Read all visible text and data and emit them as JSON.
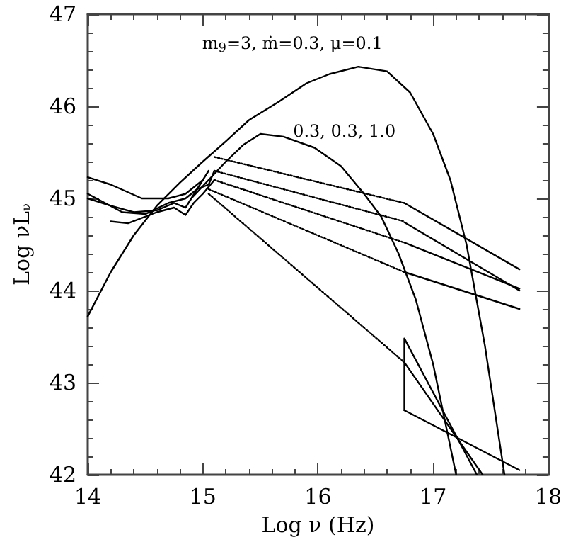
{
  "chart_data": {
    "type": "line",
    "xlabel": "Log ν (Hz)",
    "ylabel": "Log νL$_{ν}$",
    "xlim": [
      14,
      18
    ],
    "ylim": [
      42,
      47
    ],
    "xticks": [
      14,
      15,
      16,
      17,
      18
    ],
    "yticks": [
      42,
      43,
      44,
      45,
      46,
      47
    ],
    "grid": false,
    "marker": "none",
    "annotations": [
      "m$_{9}$=3, ṁ=0.3, μ=0.1",
      "0.3, 0.3, 1.0"
    ],
    "series": [
      {
        "color": "#000000",
        "x": [
          14,
          14.2,
          14.4,
          14.6,
          14.8,
          15,
          15.2,
          15.4,
          15.66,
          15.9,
          16.1,
          16.35,
          16.6,
          16.8,
          17,
          17.15,
          17.29,
          17.45,
          17.62
        ],
        "values": [
          43.72,
          44.2,
          44.6,
          44.92,
          45.17,
          45.4,
          45.62,
          45.85,
          46.05,
          46.25,
          46.35,
          46.43,
          46.38,
          46.15,
          45.7,
          45.2,
          44.5,
          43.4,
          42
        ]
      },
      {
        "color": "#000000",
        "x": [
          14.9,
          15.05,
          15.2,
          15.35,
          15.5,
          15.7,
          15.97,
          16.2,
          16.4,
          16.55,
          16.7,
          16.85,
          17,
          17.1,
          17.2
        ],
        "values": [
          45.0,
          45.2,
          45.4,
          45.58,
          45.7,
          45.67,
          45.55,
          45.35,
          45.05,
          44.8,
          44.4,
          43.9,
          43.2,
          42.6,
          42
        ]
      },
      {
        "color": "#000000",
        "x": [
          14,
          14.2,
          14.47,
          14.7,
          14.85,
          15
        ],
        "values": [
          45.23,
          45.15,
          45.0,
          45.0,
          45.05,
          45.2
        ]
      },
      {
        "color": "#000000",
        "x": [
          14,
          14.15,
          14.3,
          14.5,
          14.7,
          14.85,
          14.95,
          15.05
        ],
        "values": [
          45.05,
          44.95,
          44.85,
          44.83,
          44.95,
          45.0,
          45.1,
          45.3
        ]
      },
      {
        "color": "#000000",
        "x": [
          14,
          14.2,
          14.4,
          14.6,
          14.75,
          14.85,
          14.95,
          15.05,
          15.1
        ],
        "values": [
          45.0,
          44.92,
          44.85,
          44.87,
          44.95,
          44.9,
          45.1,
          45.15,
          45.3
        ]
      },
      {
        "color": "#000000",
        "x": [
          14.2,
          14.35,
          14.6,
          14.75,
          14.85,
          14.92,
          15,
          15.1
        ],
        "values": [
          44.75,
          44.73,
          44.85,
          44.9,
          44.82,
          44.95,
          45.05,
          45.2
        ]
      },
      {
        "color": "#000000",
        "line_style": "dotted",
        "x": [
          15.1,
          16.75
        ],
        "values": [
          45.45,
          44.95
        ]
      },
      {
        "color": "#000000",
        "line_style": "dotted",
        "x": [
          15.1,
          16.75
        ],
        "values": [
          45.3,
          44.75
        ]
      },
      {
        "color": "#000000",
        "line_style": "dotted",
        "x": [
          15.1,
          16.75
        ],
        "values": [
          45.2,
          44.52
        ]
      },
      {
        "color": "#000000",
        "line_style": "dotted",
        "x": [
          15.05,
          16.75
        ],
        "values": [
          45.1,
          44.2
        ]
      },
      {
        "color": "#000000",
        "line_style": "dotted",
        "x": [
          15.05,
          16.75
        ],
        "values": [
          45.05,
          43.22
        ]
      },
      {
        "color": "#000000",
        "x": [
          16.75,
          17.75
        ],
        "values": [
          44.95,
          44.23
        ]
      },
      {
        "color": "#000000",
        "x": [
          16.75,
          17.75
        ],
        "values": [
          44.74,
          44.0
        ]
      },
      {
        "color": "#000000",
        "x": [
          16.75,
          17.75
        ],
        "values": [
          44.52,
          44.02
        ]
      },
      {
        "color": "#000000",
        "x": [
          16.75,
          17.75
        ],
        "values": [
          44.2,
          43.8
        ]
      },
      {
        "color": "#000000",
        "x": [
          16.75,
          16.75,
          17.38
        ],
        "values": [
          42.7,
          43.48,
          42
        ]
      },
      {
        "color": "#000000",
        "x": [
          16.75,
          17.43
        ],
        "values": [
          43.22,
          42
        ]
      },
      {
        "color": "#000000",
        "x": [
          16.75,
          17.75
        ],
        "values": [
          42.7,
          42.05
        ]
      }
    ]
  }
}
